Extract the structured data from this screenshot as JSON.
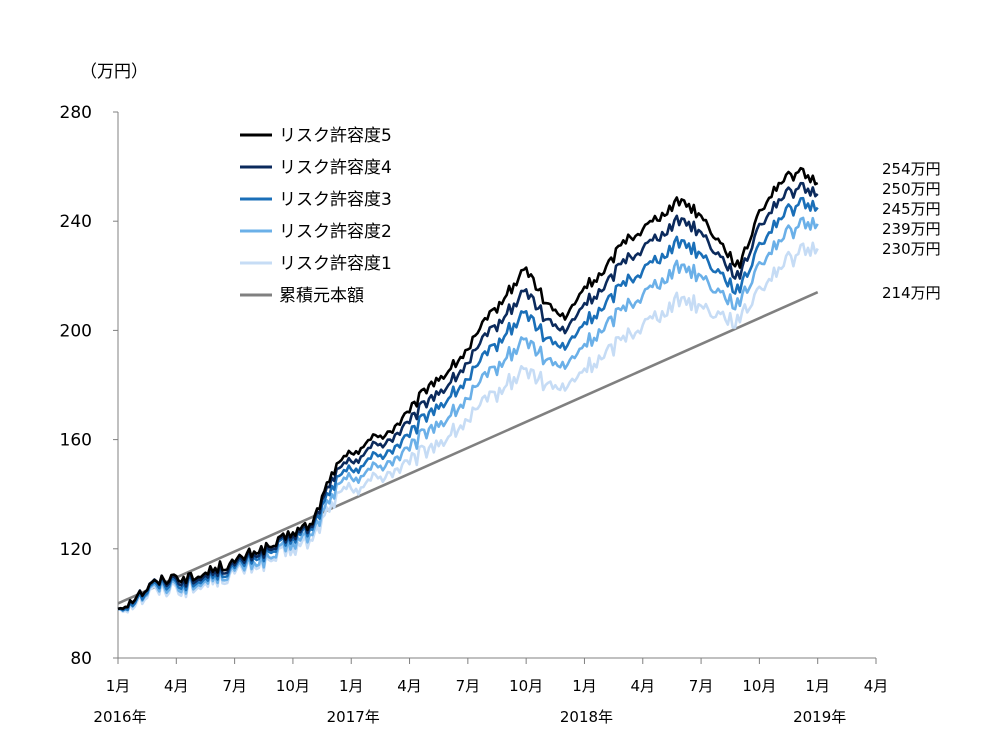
{
  "chart_data": {
    "type": "line",
    "unit_label": "（万円）",
    "ylim": [
      80,
      280
    ],
    "y_ticks": [
      80,
      120,
      160,
      200,
      240,
      280
    ],
    "x_ticks": [
      "1月",
      "4月",
      "7月",
      "10月",
      "1月",
      "4月",
      "7月",
      "10月",
      "1月",
      "4月",
      "7月",
      "10月",
      "1月",
      "4月"
    ],
    "year_labels": [
      "2016年",
      "2017年",
      "2018年",
      "2019年"
    ],
    "x_range_months": [
      0,
      39
    ],
    "legend_position": "top-left",
    "grid": false,
    "series": [
      {
        "name": "リスク許容度5",
        "color": "#000000",
        "end_label": "254万円",
        "points": [
          [
            0,
            98
          ],
          [
            1,
            103
          ],
          [
            2,
            108
          ],
          [
            3,
            110
          ],
          [
            4,
            109
          ],
          [
            5,
            113
          ],
          [
            6,
            115
          ],
          [
            7,
            119
          ],
          [
            8,
            121
          ],
          [
            9,
            126
          ],
          [
            10,
            129
          ],
          [
            11,
            148
          ],
          [
            12,
            155
          ],
          [
            13,
            160
          ],
          [
            14,
            163
          ],
          [
            15,
            170
          ],
          [
            16,
            180
          ],
          [
            17,
            185
          ],
          [
            18,
            193
          ],
          [
            19,
            204
          ],
          [
            20,
            213
          ],
          [
            21,
            223
          ],
          [
            22,
            210
          ],
          [
            23,
            204
          ],
          [
            24,
            216
          ],
          [
            25,
            221
          ],
          [
            26,
            233
          ],
          [
            27,
            237
          ],
          [
            28,
            243
          ],
          [
            29,
            248
          ],
          [
            30,
            242
          ],
          [
            31,
            232
          ],
          [
            32,
            223
          ],
          [
            33,
            244
          ],
          [
            34,
            254
          ],
          [
            35,
            258
          ],
          [
            36,
            254
          ]
        ]
      },
      {
        "name": "リスク許容度4",
        "color": "#0b2a5c",
        "end_label": "250万円",
        "points": [
          [
            0,
            98
          ],
          [
            1,
            103
          ],
          [
            2,
            108
          ],
          [
            3,
            109
          ],
          [
            4,
            108
          ],
          [
            5,
            112
          ],
          [
            6,
            114
          ],
          [
            7,
            118
          ],
          [
            8,
            120
          ],
          [
            9,
            125
          ],
          [
            10,
            128
          ],
          [
            11,
            146
          ],
          [
            12,
            152
          ],
          [
            13,
            157
          ],
          [
            14,
            160
          ],
          [
            15,
            166
          ],
          [
            16,
            175
          ],
          [
            17,
            180
          ],
          [
            18,
            188
          ],
          [
            19,
            198
          ],
          [
            20,
            206
          ],
          [
            21,
            215
          ],
          [
            22,
            204
          ],
          [
            23,
            199
          ],
          [
            24,
            210
          ],
          [
            25,
            215
          ],
          [
            26,
            226
          ],
          [
            27,
            230
          ],
          [
            28,
            236
          ],
          [
            29,
            241
          ],
          [
            30,
            236
          ],
          [
            31,
            227
          ],
          [
            32,
            219
          ],
          [
            33,
            239
          ],
          [
            34,
            248
          ],
          [
            35,
            252
          ],
          [
            36,
            250
          ]
        ]
      },
      {
        "name": "リスク許容度3",
        "color": "#1a6fb8",
        "end_label": "245万円",
        "points": [
          [
            0,
            98
          ],
          [
            1,
            102
          ],
          [
            2,
            107
          ],
          [
            3,
            108
          ],
          [
            4,
            107
          ],
          [
            5,
            111
          ],
          [
            6,
            113
          ],
          [
            7,
            117
          ],
          [
            8,
            119
          ],
          [
            9,
            124
          ],
          [
            10,
            127
          ],
          [
            11,
            143
          ],
          [
            12,
            149
          ],
          [
            13,
            153
          ],
          [
            14,
            156
          ],
          [
            15,
            161
          ],
          [
            16,
            170
          ],
          [
            17,
            175
          ],
          [
            18,
            182
          ],
          [
            19,
            191
          ],
          [
            20,
            199
          ],
          [
            21,
            207
          ],
          [
            22,
            197
          ],
          [
            23,
            193
          ],
          [
            24,
            203
          ],
          [
            25,
            208
          ],
          [
            26,
            218
          ],
          [
            27,
            222
          ],
          [
            28,
            228
          ],
          [
            29,
            233
          ],
          [
            30,
            228
          ],
          [
            31,
            221
          ],
          [
            32,
            214
          ],
          [
            33,
            232
          ],
          [
            34,
            241
          ],
          [
            35,
            246
          ],
          [
            36,
            245
          ]
        ]
      },
      {
        "name": "リスク許容度2",
        "color": "#6bb0e8",
        "end_label": "239万円",
        "points": [
          [
            0,
            98
          ],
          [
            1,
            102
          ],
          [
            2,
            106
          ],
          [
            3,
            107
          ],
          [
            4,
            106
          ],
          [
            5,
            110
          ],
          [
            6,
            112
          ],
          [
            7,
            115
          ],
          [
            8,
            117
          ],
          [
            9,
            122
          ],
          [
            10,
            125
          ],
          [
            11,
            140
          ],
          [
            12,
            146
          ],
          [
            13,
            149
          ],
          [
            14,
            152
          ],
          [
            15,
            156
          ],
          [
            16,
            164
          ],
          [
            17,
            168
          ],
          [
            18,
            175
          ],
          [
            19,
            183
          ],
          [
            20,
            190
          ],
          [
            21,
            197
          ],
          [
            22,
            189
          ],
          [
            23,
            186
          ],
          [
            24,
            195
          ],
          [
            25,
            200
          ],
          [
            26,
            209
          ],
          [
            27,
            213
          ],
          [
            28,
            219
          ],
          [
            29,
            224
          ],
          [
            30,
            220
          ],
          [
            31,
            214
          ],
          [
            32,
            209
          ],
          [
            33,
            225
          ],
          [
            34,
            233
          ],
          [
            35,
            238
          ],
          [
            36,
            239
          ]
        ]
      },
      {
        "name": "リスク許容度1",
        "color": "#c6dcf5",
        "end_label": "230万円",
        "points": [
          [
            0,
            98
          ],
          [
            1,
            101
          ],
          [
            2,
            105
          ],
          [
            3,
            106
          ],
          [
            4,
            105
          ],
          [
            5,
            109
          ],
          [
            6,
            111
          ],
          [
            7,
            114
          ],
          [
            8,
            116
          ],
          [
            9,
            120
          ],
          [
            10,
            123
          ],
          [
            11,
            137
          ],
          [
            12,
            142
          ],
          [
            13,
            145
          ],
          [
            14,
            148
          ],
          [
            15,
            151
          ],
          [
            16,
            157
          ],
          [
            17,
            161
          ],
          [
            18,
            167
          ],
          [
            19,
            174
          ],
          [
            20,
            180
          ],
          [
            21,
            186
          ],
          [
            22,
            180
          ],
          [
            23,
            178
          ],
          [
            24,
            186
          ],
          [
            25,
            190
          ],
          [
            26,
            198
          ],
          [
            27,
            202
          ],
          [
            28,
            207
          ],
          [
            29,
            212
          ],
          [
            30,
            209
          ],
          [
            31,
            206
          ],
          [
            32,
            203
          ],
          [
            33,
            216
          ],
          [
            34,
            223
          ],
          [
            35,
            228
          ],
          [
            36,
            230
          ]
        ]
      },
      {
        "name": "累積元本額",
        "color": "#808080",
        "end_label": "214万円",
        "points": [
          [
            0,
            100
          ],
          [
            36,
            214
          ]
        ]
      }
    ]
  }
}
